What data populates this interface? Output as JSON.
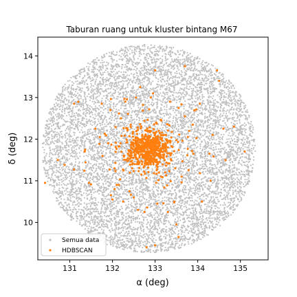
{
  "chart_data": {
    "type": "scatter",
    "title": "Taburan ruang untuk kluster bintang M67",
    "xlabel": "α (deg)",
    "ylabel": "δ (deg)",
    "xlim": [
      130.25,
      135.65
    ],
    "ylim": [
      9.1,
      14.45
    ],
    "xticks": [
      131,
      132,
      133,
      134,
      135
    ],
    "yticks": [
      10,
      11,
      12,
      13,
      14
    ],
    "grid": false,
    "legend_position": "lower-left",
    "series": [
      {
        "name": "Semua data",
        "color": "#c0c0c0",
        "distribution": {
          "shape": "uniform-disk",
          "center": [
            132.85,
            11.77
          ],
          "radius_deg": 2.5
        }
      },
      {
        "name": "HDBSCAN",
        "color": "#ff7f0e",
        "cluster_center": [
          132.85,
          11.77
        ],
        "points_sample": [
          [
            130.42,
            10.95
          ],
          [
            130.72,
            11.5
          ],
          [
            130.88,
            11.38
          ],
          [
            131.1,
            11.27
          ],
          [
            131.1,
            12.85
          ],
          [
            131.2,
            12.9
          ],
          [
            131.35,
            11.7
          ],
          [
            131.45,
            10.95
          ],
          [
            131.6,
            12.25
          ],
          [
            131.7,
            12.05
          ],
          [
            131.75,
            12.85
          ],
          [
            131.9,
            11.9
          ],
          [
            132.0,
            10.55
          ],
          [
            132.05,
            11.3
          ],
          [
            132.15,
            10.9
          ],
          [
            132.25,
            10.5
          ],
          [
            132.3,
            12.9
          ],
          [
            132.4,
            10.75
          ],
          [
            132.5,
            10.6
          ],
          [
            132.55,
            13.0
          ],
          [
            132.6,
            10.3
          ],
          [
            132.65,
            13.25
          ],
          [
            132.75,
            10.25
          ],
          [
            132.8,
            9.4
          ],
          [
            132.95,
            13.1
          ],
          [
            133.0,
            9.45
          ],
          [
            133.05,
            10.45
          ],
          [
            133.3,
            10.25
          ],
          [
            133.35,
            12.9
          ],
          [
            133.45,
            10.5
          ],
          [
            133.5,
            9.95
          ],
          [
            133.55,
            9.65
          ],
          [
            133.62,
            11.1
          ],
          [
            133.7,
            12.55
          ],
          [
            133.8,
            12.2
          ],
          [
            133.9,
            11.65
          ],
          [
            134.05,
            12.85
          ],
          [
            134.1,
            10.5
          ],
          [
            134.3,
            11.0
          ],
          [
            134.35,
            12.1
          ],
          [
            134.45,
            13.65
          ],
          [
            134.5,
            13.4
          ],
          [
            134.6,
            12.25
          ],
          [
            134.65,
            11.5
          ],
          [
            134.85,
            12.3
          ],
          [
            135.1,
            11.7
          ],
          [
            133.7,
            13.75
          ],
          [
            133.0,
            13.65
          ],
          [
            131.95,
            12.7
          ],
          [
            132.2,
            12.5
          ],
          [
            133.55,
            12.75
          ],
          [
            132.05,
            10.8
          ]
        ]
      }
    ]
  }
}
